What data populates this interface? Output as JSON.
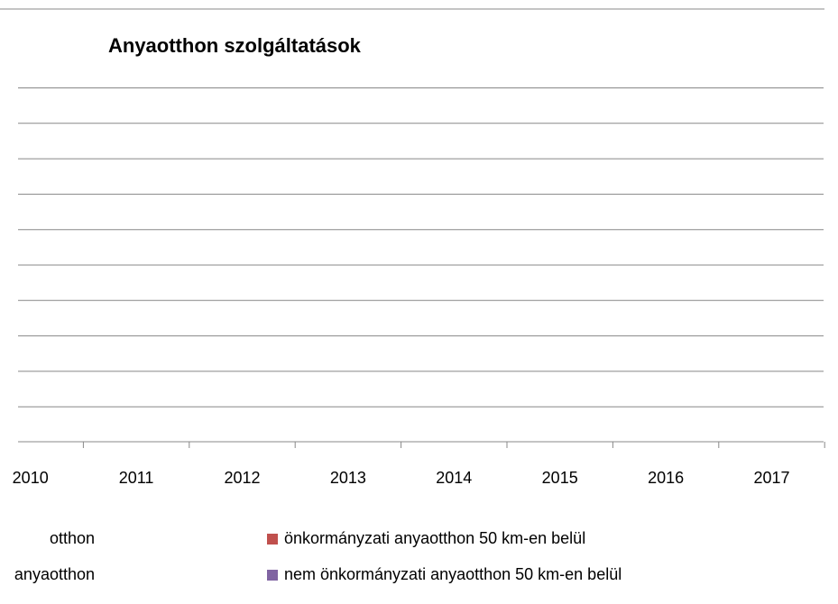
{
  "chart_data": {
    "type": "bar",
    "title": "Anyaotthon szolgáltatások",
    "categories": [
      "2010",
      "2011",
      "2012",
      "2013",
      "2014",
      "2015",
      "2016",
      "2017"
    ],
    "series": [
      {
        "name": "otthon",
        "color": null
      },
      {
        "name": "önkormányzati anyaotthon 50 km-en belül",
        "color": "#c0504d"
      },
      {
        "name": "anyaotthon",
        "color": null
      },
      {
        "name": "nem önkormányzati anyaotthon 50 km-en belül",
        "color": "#8064a2"
      }
    ],
    "grid": true
  }
}
